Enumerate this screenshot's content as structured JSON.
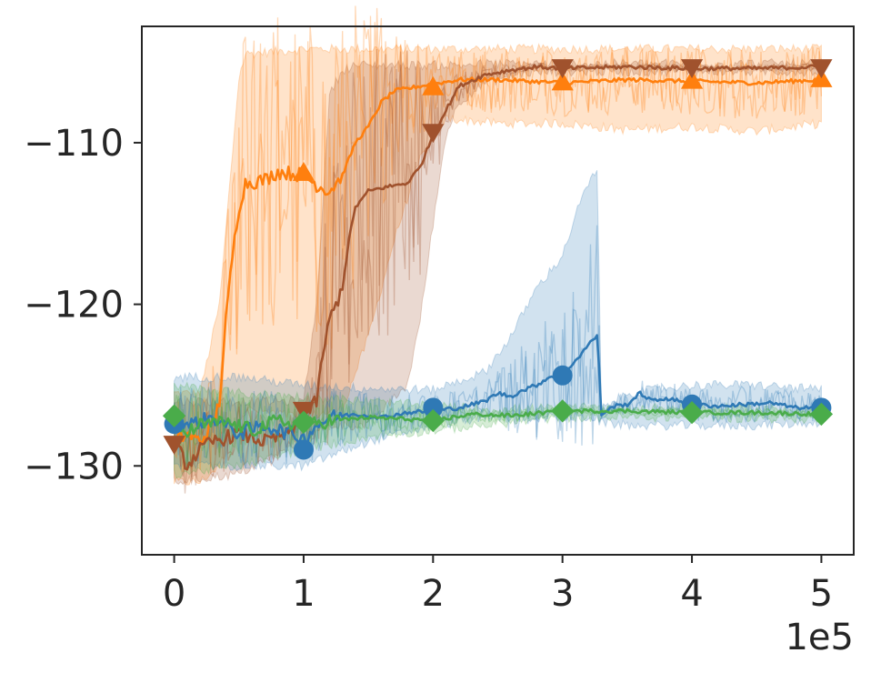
{
  "chart_data": {
    "type": "line",
    "title": "",
    "xlabel": "",
    "ylabel": "",
    "x_multiplier_label": "1e5",
    "xlim": [
      -0.25,
      5.25
    ],
    "ylim": [
      -135.5,
      -102.8
    ],
    "x_ticks": [
      0,
      1,
      2,
      3,
      4,
      5
    ],
    "x_tick_labels": [
      "0",
      "1",
      "2",
      "3",
      "4",
      "5"
    ],
    "y_ticks": [
      -130,
      -120,
      -110
    ],
    "y_tick_labels": [
      "−130",
      "−120",
      "−110"
    ],
    "grid": false,
    "legend": "none",
    "series": [
      {
        "color": "#ff7f0e",
        "marker": "triangle-up",
        "points": [
          [
            0,
            -128.5
          ],
          [
            0.1,
            -128
          ],
          [
            0.2,
            -128.5
          ],
          [
            0.3,
            -127.5
          ],
          [
            0.35,
            -126
          ],
          [
            0.4,
            -121
          ],
          [
            0.45,
            -117
          ],
          [
            0.5,
            -114
          ],
          [
            0.55,
            -112.5
          ],
          [
            0.7,
            -112.3
          ],
          [
            0.8,
            -111.8
          ],
          [
            1.0,
            -112
          ],
          [
            1.1,
            -112.6
          ],
          [
            1.2,
            -113
          ],
          [
            1.3,
            -112
          ],
          [
            1.35,
            -111
          ],
          [
            1.4,
            -110
          ],
          [
            1.5,
            -109
          ],
          [
            1.6,
            -107.5
          ],
          [
            1.7,
            -106.8
          ],
          [
            1.9,
            -106.5
          ],
          [
            2.2,
            -106.1
          ],
          [
            2.5,
            -106.1
          ],
          [
            3.0,
            -106.3
          ],
          [
            3.5,
            -106.1
          ],
          [
            4.0,
            -106.2
          ],
          [
            4.5,
            -106.3
          ],
          [
            5.0,
            -106.1
          ]
        ],
        "band": [
          [
            0,
            -131,
            -125.5
          ],
          [
            0.2,
            -131,
            -125.5
          ],
          [
            0.35,
            -130,
            -120
          ],
          [
            0.5,
            -127,
            -106
          ],
          [
            0.55,
            -126.5,
            -104.5
          ],
          [
            1.0,
            -127,
            -104.2
          ],
          [
            1.3,
            -126.5,
            -104.2
          ],
          [
            1.5,
            -122,
            -104.2
          ],
          [
            1.7,
            -116,
            -104.2
          ],
          [
            1.9,
            -111,
            -104.2
          ],
          [
            2.1,
            -108.5,
            -104.2
          ],
          [
            2.5,
            -108.8,
            -104.2
          ],
          [
            3.0,
            -108.8,
            -104.2
          ],
          [
            3.5,
            -109.2,
            -104.2
          ],
          [
            4.0,
            -109,
            -104.2
          ],
          [
            4.5,
            -109.3,
            -104.2
          ],
          [
            5.0,
            -108.8,
            -104.2
          ]
        ],
        "markers_x": [
          1.0,
          2.0,
          3.0,
          4.0,
          5.0
        ],
        "markers_y": [
          -111.9,
          -106.6,
          -106.3,
          -106.2,
          -106.1
        ]
      },
      {
        "color": "#a0522d",
        "marker": "triangle-down",
        "points": [
          [
            0,
            -128.5
          ],
          [
            0.1,
            -130
          ],
          [
            0.2,
            -129
          ],
          [
            0.3,
            -128.5
          ],
          [
            0.5,
            -128
          ],
          [
            0.7,
            -128.5
          ],
          [
            0.9,
            -128
          ],
          [
            1.0,
            -127
          ],
          [
            1.1,
            -126
          ],
          [
            1.15,
            -123
          ],
          [
            1.2,
            -121
          ],
          [
            1.3,
            -119
          ],
          [
            1.35,
            -116
          ],
          [
            1.4,
            -114
          ],
          [
            1.5,
            -113
          ],
          [
            1.6,
            -112.8
          ],
          [
            1.8,
            -112.5
          ],
          [
            1.9,
            -111.5
          ],
          [
            2.0,
            -109.5
          ],
          [
            2.1,
            -108
          ],
          [
            2.2,
            -106.5
          ],
          [
            2.4,
            -105.8
          ],
          [
            2.6,
            -105.5
          ],
          [
            2.8,
            -105.3
          ],
          [
            3.0,
            -105.4
          ],
          [
            3.5,
            -105.3
          ],
          [
            4.0,
            -105.4
          ],
          [
            4.5,
            -105.4
          ],
          [
            5.0,
            -105.3
          ]
        ],
        "band": [
          [
            0,
            -131,
            -126
          ],
          [
            0.5,
            -130.5,
            -126
          ],
          [
            1.0,
            -128.5,
            -126
          ],
          [
            1.1,
            -128,
            -120
          ],
          [
            1.2,
            -127.5,
            -107
          ],
          [
            1.3,
            -127.5,
            -105.5
          ],
          [
            1.4,
            -127.5,
            -105.2
          ],
          [
            1.5,
            -127.5,
            -105.2
          ],
          [
            1.8,
            -125,
            -105.2
          ],
          [
            1.9,
            -121,
            -105.2
          ],
          [
            2.0,
            -115,
            -105.2
          ],
          [
            2.1,
            -109.5,
            -105.2
          ],
          [
            2.2,
            -107.5,
            -105.2
          ],
          [
            2.4,
            -106.3,
            -105.1
          ],
          [
            2.7,
            -105.7,
            -105.1
          ],
          [
            3.0,
            -105.6,
            -105.1
          ],
          [
            5.0,
            -105.6,
            -105.1
          ]
        ],
        "markers_x": [
          0,
          1.0,
          2.0,
          3.0,
          4.0,
          5.0
        ],
        "markers_y": [
          -128.6,
          -126.5,
          -109.3,
          -105.3,
          -105.3,
          -105.3
        ]
      },
      {
        "color": "#2f79b5",
        "marker": "circle",
        "points": [
          [
            0,
            -127
          ],
          [
            0.1,
            -127.5
          ],
          [
            0.3,
            -127
          ],
          [
            0.5,
            -128
          ],
          [
            0.7,
            -127.5
          ],
          [
            0.9,
            -128
          ],
          [
            1.0,
            -128.3
          ],
          [
            1.1,
            -127.5
          ],
          [
            1.2,
            -127
          ],
          [
            1.4,
            -126.8
          ],
          [
            1.6,
            -127
          ],
          [
            1.8,
            -126.7
          ],
          [
            2.0,
            -126.6
          ],
          [
            2.2,
            -126.4
          ],
          [
            2.4,
            -126
          ],
          [
            2.5,
            -125.5
          ],
          [
            2.6,
            -125.7
          ],
          [
            2.7,
            -125.3
          ],
          [
            2.8,
            -125
          ],
          [
            2.9,
            -124.5
          ],
          [
            3.0,
            -124.3
          ],
          [
            3.1,
            -123.5
          ],
          [
            3.2,
            -122.5
          ],
          [
            3.27,
            -121.9
          ],
          [
            3.3,
            -126.8
          ],
          [
            3.4,
            -126.3
          ],
          [
            3.5,
            -126.2
          ],
          [
            3.6,
            -125.5
          ],
          [
            3.7,
            -126
          ],
          [
            3.8,
            -125.8
          ],
          [
            3.9,
            -126
          ],
          [
            4.0,
            -126.2
          ],
          [
            4.2,
            -126.3
          ],
          [
            4.4,
            -126.2
          ],
          [
            4.6,
            -126.1
          ],
          [
            4.8,
            -126.4
          ],
          [
            5.0,
            -126.4
          ]
        ],
        "band": [
          [
            0,
            -130,
            -124.5
          ],
          [
            0.5,
            -130,
            -124.5
          ],
          [
            1.0,
            -130,
            -125
          ],
          [
            1.5,
            -128.5,
            -125.2
          ],
          [
            2.0,
            -127.5,
            -125.3
          ],
          [
            2.4,
            -127,
            -124.2
          ],
          [
            2.6,
            -127,
            -122
          ],
          [
            2.8,
            -127,
            -119
          ],
          [
            3.0,
            -127,
            -117
          ],
          [
            3.1,
            -127,
            -114.5
          ],
          [
            3.2,
            -127,
            -112.5
          ],
          [
            3.27,
            -127,
            -111.8
          ],
          [
            3.3,
            -127.3,
            -126.5
          ],
          [
            3.5,
            -127.5,
            -125.5
          ],
          [
            4.0,
            -127.5,
            -125
          ],
          [
            4.5,
            -127.5,
            -125
          ],
          [
            5.0,
            -127.3,
            -125.3
          ]
        ],
        "markers_x": [
          0,
          1.0,
          2.0,
          3.0,
          4.0,
          5.0
        ],
        "markers_y": [
          -127.4,
          -129.0,
          -126.4,
          -124.4,
          -126.2,
          -126.4
        ]
      },
      {
        "color": "#4aac4a",
        "marker": "diamond",
        "points": [
          [
            0,
            -127.5
          ],
          [
            0.1,
            -128
          ],
          [
            0.2,
            -127.5
          ],
          [
            0.4,
            -127.3
          ],
          [
            0.6,
            -127.8
          ],
          [
            0.8,
            -127.2
          ],
          [
            1.0,
            -127.5
          ],
          [
            1.2,
            -127.2
          ],
          [
            1.5,
            -127
          ],
          [
            1.8,
            -127.1
          ],
          [
            2.0,
            -127.2
          ],
          [
            2.3,
            -126.8
          ],
          [
            2.6,
            -126.9
          ],
          [
            3.0,
            -126.6
          ],
          [
            3.5,
            -126.6
          ],
          [
            4.0,
            -126.7
          ],
          [
            4.5,
            -126.7
          ],
          [
            5.0,
            -126.8
          ]
        ],
        "band": [
          [
            0,
            -130.5,
            -125
          ],
          [
            0.5,
            -130,
            -125.5
          ],
          [
            1.0,
            -129,
            -125.7
          ],
          [
            1.5,
            -128.2,
            -126
          ],
          [
            2.0,
            -127.8,
            -126.3
          ],
          [
            2.5,
            -127.4,
            -126.5
          ],
          [
            3.0,
            -127,
            -126.4
          ],
          [
            4.0,
            -127,
            -126.4
          ],
          [
            5.0,
            -127.1,
            -126.5
          ]
        ],
        "markers_x": [
          0,
          1.0,
          2.0,
          3.0,
          4.0,
          5.0
        ],
        "markers_y": [
          -126.9,
          -127.3,
          -127.2,
          -126.6,
          -126.7,
          -126.8
        ]
      }
    ]
  }
}
